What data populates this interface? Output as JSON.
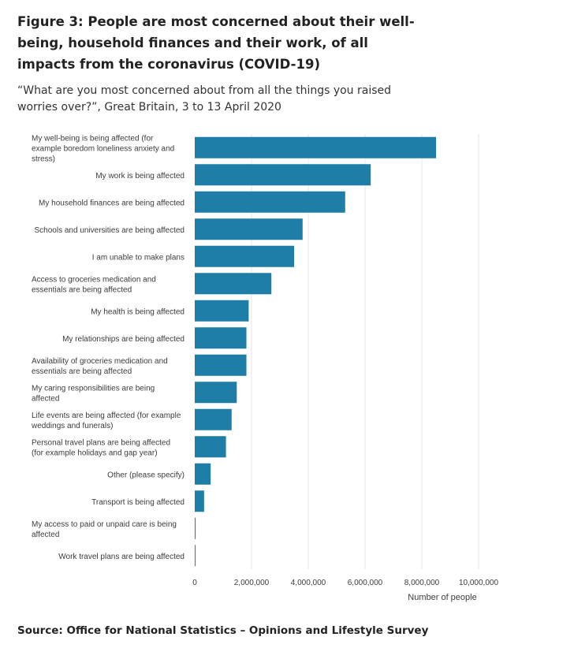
{
  "title": "Figure 3: People are most concerned about their well-being, household finances and their work, of all impacts from the coronavirus (COVID-19)",
  "subtitle": "“What are you most concerned about from all the things you raised worries over?”, Great Britain, 3 to 13 April 2020",
  "source": "Source: Office for National Statistics – Opinions and Lifestyle Survey",
  "colors": {
    "bar": "#1f7ea8",
    "grid": "#e6e6e6"
  },
  "chart_data": {
    "type": "bar",
    "orientation": "horizontal",
    "categories": [
      [
        "My well-being is being affected (for",
        "example boredom loneliness anxiety and",
        "stress)"
      ],
      [
        "My work is being affected"
      ],
      [
        "My household finances are being affected"
      ],
      [
        "Schools and universities are being affected"
      ],
      [
        "I am unable to make plans"
      ],
      [
        "Access to groceries medication and",
        "essentials are being affected"
      ],
      [
        "My health is being affected"
      ],
      [
        "My relationships are being affected"
      ],
      [
        "Availability of groceries medication and",
        "essentials are being affected"
      ],
      [
        "My caring responsibilities are being",
        "affected"
      ],
      [
        "Life events are being affected (for example",
        "weddings and funerals)"
      ],
      [
        "Personal travel plans are being affected",
        "(for example holidays and gap year)"
      ],
      [
        "Other (please specify)"
      ],
      [
        "Transport is being affected"
      ],
      [
        "My access to paid or unpaid care is being",
        "affected"
      ],
      [
        "Work travel plans are being affected"
      ]
    ],
    "values": [
      8500000,
      6200000,
      5300000,
      3800000,
      3500000,
      2700000,
      1900000,
      1820000,
      1820000,
      1480000,
      1300000,
      1100000,
      560000,
      330000,
      30000,
      10000
    ],
    "xlim": [
      0,
      10000000
    ],
    "xticks": [
      0,
      2000000,
      4000000,
      6000000,
      8000000,
      10000000
    ],
    "xtick_labels": [
      "0",
      "2,000,000",
      "4,000,000",
      "6,000,000",
      "8,000,000",
      "10,000,000"
    ],
    "xlabel": "Number of people",
    "ylabel": "",
    "grid": true
  }
}
